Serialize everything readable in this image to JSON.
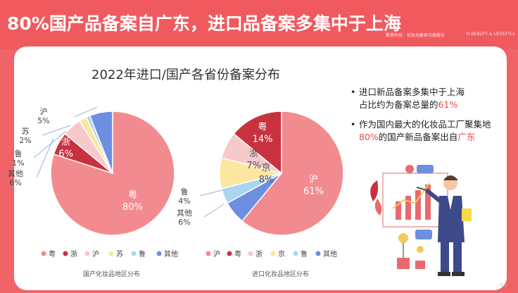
{
  "headline": "80%国产品备案自广东，进口品备案多集中于上海",
  "brand": "聚美科技 · 化妆品备案月度报告",
  "brand_en": "YI BEAUTY & LIFESTYLE",
  "chart_title": "2022年进口/国产各省份备案分布",
  "bullets": [
    {
      "dot": "•",
      "line1": "进口新品备案多集中于上海",
      "line2_pre": "占比约为备案总量的",
      "line2_hl": "61%",
      "line2_post": ""
    },
    {
      "dot": "•",
      "line1": "作为国内最大的化妆品工厂聚集地",
      "line2_pre": "",
      "line2_hl": "80%",
      "line2_post": "的国产新品备案出自",
      "line2_hl2": "广东"
    }
  ],
  "corner_text": ".co",
  "chart_data": [
    {
      "type": "pie",
      "caption": "国产化妆品地区分布",
      "slices": [
        {
          "name": "粤",
          "label": "粤",
          "value": 80,
          "value_label": "80%",
          "color": "#f28b8f"
        },
        {
          "name": "浙",
          "label": "浙",
          "value": 6,
          "value_label": "6%",
          "color": "#c8323f"
        },
        {
          "name": "沪",
          "label": "沪",
          "value": 5,
          "value_label": "5%",
          "color": "#f8c9cb"
        },
        {
          "name": "苏",
          "label": "苏",
          "value": 2,
          "value_label": "2%",
          "color": "#fce6a0"
        },
        {
          "name": "鲁",
          "label": "鲁",
          "value": 1,
          "value_label": "1%",
          "color": "#a9d6f0"
        },
        {
          "name": "其他",
          "label": "其他",
          "value": 6,
          "value_label": "6%",
          "color": "#6e8fe0"
        }
      ],
      "legend": [
        "粤",
        "浙",
        "沪",
        "苏",
        "鲁",
        "其他"
      ]
    },
    {
      "type": "pie",
      "caption": "进口化妆品地区分布",
      "slices": [
        {
          "name": "沪",
          "label": "沪",
          "value": 61,
          "value_label": "61%",
          "color": "#f28b8f"
        },
        {
          "name": "其他",
          "label": "其他",
          "value": 6,
          "value_label": "6%",
          "color": "#6e8fe0"
        },
        {
          "name": "鲁",
          "label": "鲁",
          "value": 4,
          "value_label": "4%",
          "color": "#a9d6f0"
        },
        {
          "name": "京",
          "label": "京",
          "value": 8,
          "value_label": "8%",
          "color": "#fce6a0"
        },
        {
          "name": "浙",
          "label": "浙",
          "value": 7,
          "value_label": "7%",
          "color": "#f8c9cb"
        },
        {
          "name": "粤",
          "label": "粤",
          "value": 14,
          "value_label": "14%",
          "color": "#c8323f"
        }
      ],
      "legend": [
        "沪",
        "粤",
        "浙",
        "京",
        "鲁",
        "其他"
      ]
    }
  ]
}
